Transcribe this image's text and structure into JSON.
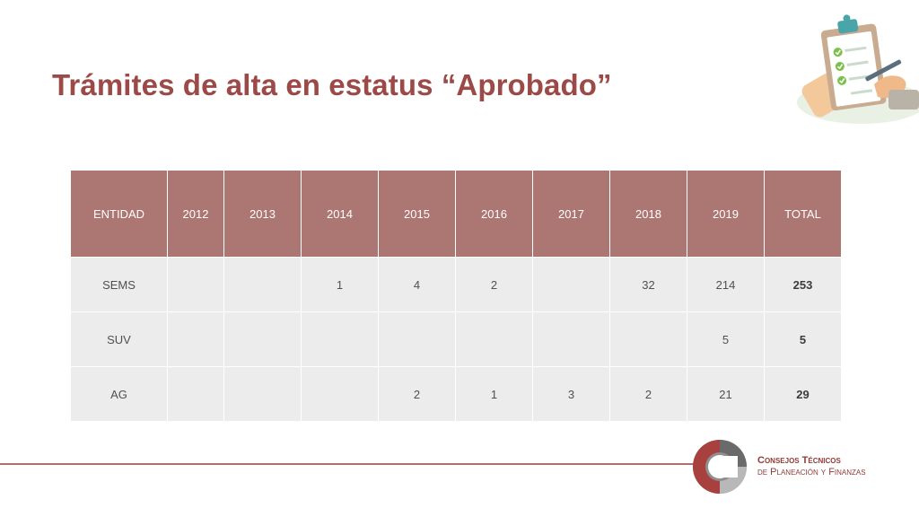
{
  "slide": {
    "title": "Trámites de alta en estatus “Aprobado”"
  },
  "illustration": {
    "icon": "clipboard-checklist-icon"
  },
  "table": {
    "headers": [
      "ENTIDAD",
      "2012",
      "2013",
      "2014",
      "2015",
      "2016",
      "2017",
      "2018",
      "2019",
      "TOTAL"
    ],
    "rows": [
      [
        "SEMS",
        "",
        "",
        "1",
        "4",
        "2",
        "",
        "32",
        "214",
        "253"
      ],
      [
        "SUV",
        "",
        "",
        "",
        "",
        "",
        "",
        "",
        "5",
        "5"
      ],
      [
        "AG",
        "",
        "",
        "",
        "2",
        "1",
        "3",
        "2",
        "21",
        "29"
      ]
    ]
  },
  "footer": {
    "org_line1": "Consejos Técnicos",
    "org_line2": "de Planeación y Finanzas",
    "logo_icon": "consejos-tecnicos-logo-icon"
  },
  "colors": {
    "title": "#9b4a48",
    "header_bg": "#ac7673",
    "body_bg": "#ececec",
    "rule": "#b06e6c"
  }
}
